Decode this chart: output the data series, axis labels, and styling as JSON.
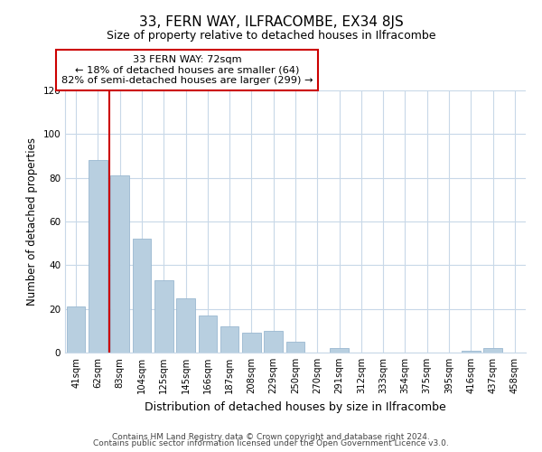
{
  "title": "33, FERN WAY, ILFRACOMBE, EX34 8JS",
  "subtitle": "Size of property relative to detached houses in Ilfracombe",
  "xlabel": "Distribution of detached houses by size in Ilfracombe",
  "ylabel": "Number of detached properties",
  "bar_labels": [
    "41sqm",
    "62sqm",
    "83sqm",
    "104sqm",
    "125sqm",
    "145sqm",
    "166sqm",
    "187sqm",
    "208sqm",
    "229sqm",
    "250sqm",
    "270sqm",
    "291sqm",
    "312sqm",
    "333sqm",
    "354sqm",
    "375sqm",
    "395sqm",
    "416sqm",
    "437sqm",
    "458sqm"
  ],
  "bar_values": [
    21,
    88,
    81,
    52,
    33,
    25,
    17,
    12,
    9,
    10,
    5,
    0,
    2,
    0,
    0,
    0,
    0,
    0,
    1,
    2,
    0
  ],
  "bar_color": "#b8cfe0",
  "bar_edge_color": "#9ab8d0",
  "vline_color": "#cc0000",
  "ylim": [
    0,
    120
  ],
  "yticks": [
    0,
    20,
    40,
    60,
    80,
    100,
    120
  ],
  "annotation_title": "33 FERN WAY: 72sqm",
  "annotation_line1": "← 18% of detached houses are smaller (64)",
  "annotation_line2": "82% of semi-detached houses are larger (299) →",
  "annotation_box_color": "#ffffff",
  "annotation_box_edge": "#cc0000",
  "footer_line1": "Contains HM Land Registry data © Crown copyright and database right 2024.",
  "footer_line2": "Contains public sector information licensed under the Open Government Licence v3.0.",
  "background_color": "#ffffff",
  "grid_color": "#c8d8e8"
}
